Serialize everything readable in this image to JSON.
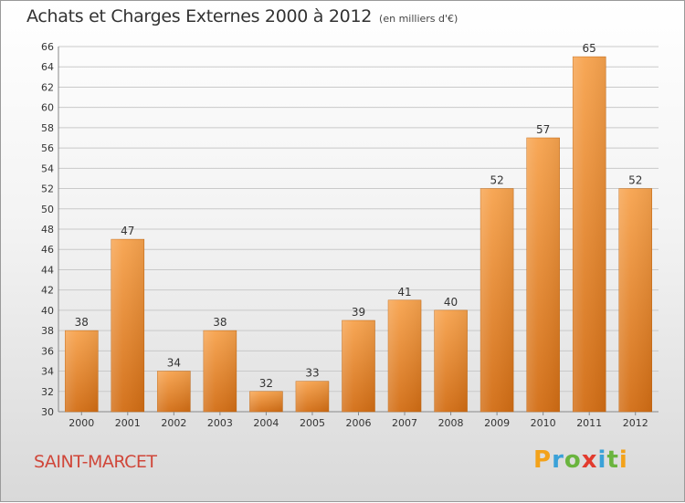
{
  "header": {
    "title": "Achats et Charges Externes 2000 à 2012",
    "unit": "(en milliers d'€)"
  },
  "footer": {
    "place": "SAINT-MARCET"
  },
  "logo": {
    "text": "Proxiti",
    "letters": [
      {
        "char": "P",
        "color": "#f3a21a"
      },
      {
        "char": "r",
        "color": "#3aa1d8"
      },
      {
        "char": "o",
        "color": "#6ab43e"
      },
      {
        "char": "x",
        "color": "#e23b2e"
      },
      {
        "char": "i",
        "color": "#3aa1d8"
      },
      {
        "char": "t",
        "color": "#6ab43e"
      },
      {
        "char": "i",
        "color": "#f3a21a"
      }
    ]
  },
  "chart_data": {
    "type": "bar",
    "title": "Achats et Charges Externes 2000 à 2012",
    "subtitle": "(en milliers d'€)",
    "categories": [
      "2000",
      "2001",
      "2002",
      "2003",
      "2004",
      "2005",
      "2006",
      "2007",
      "2008",
      "2009",
      "2010",
      "2011",
      "2012"
    ],
    "values": [
      38,
      47,
      34,
      38,
      32,
      33,
      39,
      41,
      40,
      52,
      57,
      65,
      52
    ],
    "ylim": [
      30,
      66
    ],
    "yticks": [
      30,
      32,
      34,
      36,
      38,
      40,
      42,
      44,
      46,
      48,
      50,
      52,
      54,
      56,
      58,
      60,
      62,
      64,
      66
    ],
    "grid": true,
    "data_labels": true,
    "bar_color": "#f08a2e"
  }
}
